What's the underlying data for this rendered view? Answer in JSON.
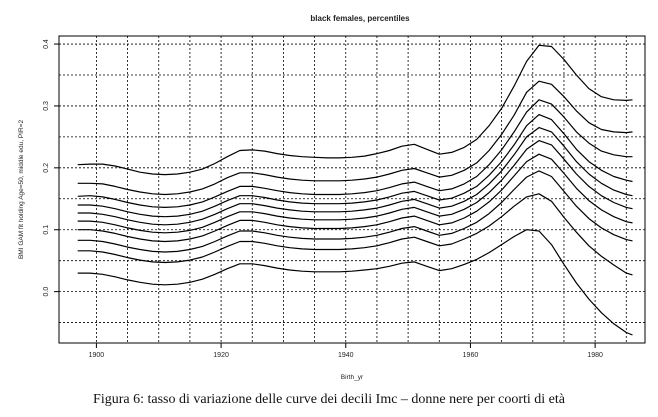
{
  "chart_data": {
    "type": "line",
    "title": "black females, percentiles",
    "xlabel": "Birth_yr",
    "ylabel": "BMI GAM fit holding Age=50, middle edu, PIR=2",
    "xlim": [
      1894,
      1988
    ],
    "ylim": [
      -0.083,
      0.413
    ],
    "xticks": [
      1900,
      1920,
      1940,
      1960,
      1980
    ],
    "yticks": [
      0.0,
      0.1,
      0.2,
      0.3,
      0.4
    ],
    "xtick_labels": [
      "1900",
      "1920",
      "1940",
      "1960",
      "1980"
    ],
    "ytick_labels": [
      "0.0",
      "0.1",
      "0.2",
      "0.3",
      "0.4"
    ],
    "grid": true,
    "legend": "none",
    "x": [
      1897,
      1899,
      1901,
      1903,
      1905,
      1907,
      1909,
      1911,
      1913,
      1915,
      1917,
      1919,
      1921,
      1923,
      1925,
      1927,
      1929,
      1931,
      1933,
      1935,
      1937,
      1939,
      1941,
      1943,
      1945,
      1947,
      1949,
      1951,
      1953,
      1955,
      1957,
      1959,
      1961,
      1963,
      1965,
      1967,
      1969,
      1971,
      1973,
      1975,
      1977,
      1979,
      1981,
      1983,
      1985,
      1986
    ],
    "series": [
      {
        "values": [
          0.205,
          0.206,
          0.206,
          0.203,
          0.198,
          0.193,
          0.19,
          0.189,
          0.19,
          0.193,
          0.198,
          0.207,
          0.218,
          0.228,
          0.229,
          0.227,
          0.223,
          0.22,
          0.218,
          0.217,
          0.216,
          0.216,
          0.217,
          0.219,
          0.223,
          0.228,
          0.235,
          0.238,
          0.23,
          0.222,
          0.225,
          0.233,
          0.246,
          0.268,
          0.296,
          0.332,
          0.372,
          0.398,
          0.396,
          0.375,
          0.35,
          0.328,
          0.315,
          0.31,
          0.309,
          0.31
        ]
      },
      {
        "values": [
          0.175,
          0.175,
          0.174,
          0.17,
          0.165,
          0.161,
          0.158,
          0.157,
          0.158,
          0.161,
          0.166,
          0.174,
          0.184,
          0.192,
          0.192,
          0.189,
          0.185,
          0.182,
          0.18,
          0.179,
          0.179,
          0.179,
          0.18,
          0.182,
          0.185,
          0.19,
          0.196,
          0.199,
          0.192,
          0.185,
          0.188,
          0.196,
          0.208,
          0.228,
          0.254,
          0.285,
          0.322,
          0.34,
          0.335,
          0.315,
          0.292,
          0.273,
          0.262,
          0.258,
          0.257,
          0.258
        ]
      },
      {
        "values": [
          0.154,
          0.155,
          0.153,
          0.149,
          0.144,
          0.14,
          0.137,
          0.136,
          0.137,
          0.14,
          0.145,
          0.153,
          0.162,
          0.17,
          0.17,
          0.167,
          0.163,
          0.16,
          0.158,
          0.157,
          0.157,
          0.157,
          0.158,
          0.16,
          0.163,
          0.168,
          0.174,
          0.177,
          0.17,
          0.163,
          0.166,
          0.174,
          0.186,
          0.205,
          0.229,
          0.258,
          0.29,
          0.31,
          0.303,
          0.282,
          0.258,
          0.24,
          0.227,
          0.221,
          0.218,
          0.218
        ]
      },
      {
        "values": [
          0.14,
          0.14,
          0.138,
          0.134,
          0.129,
          0.125,
          0.122,
          0.121,
          0.122,
          0.125,
          0.13,
          0.138,
          0.147,
          0.155,
          0.155,
          0.152,
          0.148,
          0.145,
          0.143,
          0.142,
          0.142,
          0.142,
          0.143,
          0.145,
          0.148,
          0.153,
          0.159,
          0.162,
          0.155,
          0.148,
          0.151,
          0.159,
          0.17,
          0.188,
          0.21,
          0.237,
          0.268,
          0.286,
          0.278,
          0.255,
          0.23,
          0.21,
          0.196,
          0.186,
          0.18,
          0.178
        ]
      },
      {
        "values": [
          0.127,
          0.127,
          0.125,
          0.121,
          0.116,
          0.112,
          0.109,
          0.108,
          0.109,
          0.112,
          0.117,
          0.125,
          0.134,
          0.142,
          0.142,
          0.139,
          0.135,
          0.132,
          0.13,
          0.129,
          0.129,
          0.129,
          0.13,
          0.132,
          0.135,
          0.14,
          0.146,
          0.149,
          0.142,
          0.135,
          0.138,
          0.146,
          0.157,
          0.174,
          0.195,
          0.221,
          0.25,
          0.265,
          0.258,
          0.235,
          0.21,
          0.19,
          0.175,
          0.164,
          0.157,
          0.155
        ]
      },
      {
        "values": [
          0.114,
          0.114,
          0.112,
          0.108,
          0.103,
          0.099,
          0.096,
          0.095,
          0.096,
          0.099,
          0.104,
          0.112,
          0.121,
          0.129,
          0.129,
          0.126,
          0.122,
          0.119,
          0.117,
          0.116,
          0.116,
          0.116,
          0.117,
          0.119,
          0.122,
          0.127,
          0.133,
          0.136,
          0.129,
          0.122,
          0.125,
          0.133,
          0.144,
          0.16,
          0.18,
          0.204,
          0.23,
          0.244,
          0.237,
          0.214,
          0.19,
          0.17,
          0.155,
          0.144,
          0.136,
          0.134
        ]
      },
      {
        "values": [
          0.1,
          0.1,
          0.098,
          0.094,
          0.089,
          0.085,
          0.082,
          0.081,
          0.082,
          0.085,
          0.09,
          0.098,
          0.107,
          0.115,
          0.115,
          0.112,
          0.108,
          0.105,
          0.103,
          0.102,
          0.102,
          0.102,
          0.103,
          0.105,
          0.108,
          0.113,
          0.119,
          0.122,
          0.115,
          0.108,
          0.111,
          0.119,
          0.13,
          0.145,
          0.164,
          0.187,
          0.21,
          0.222,
          0.214,
          0.191,
          0.167,
          0.147,
          0.132,
          0.121,
          0.113,
          0.111
        ]
      },
      {
        "values": [
          0.083,
          0.083,
          0.081,
          0.077,
          0.072,
          0.068,
          0.065,
          0.064,
          0.065,
          0.068,
          0.073,
          0.081,
          0.09,
          0.098,
          0.098,
          0.095,
          0.091,
          0.088,
          0.086,
          0.085,
          0.085,
          0.085,
          0.086,
          0.088,
          0.091,
          0.096,
          0.102,
          0.105,
          0.098,
          0.091,
          0.094,
          0.102,
          0.112,
          0.126,
          0.144,
          0.165,
          0.185,
          0.195,
          0.186,
          0.162,
          0.138,
          0.118,
          0.103,
          0.092,
          0.084,
          0.082
        ]
      },
      {
        "values": [
          0.066,
          0.066,
          0.064,
          0.06,
          0.055,
          0.051,
          0.048,
          0.047,
          0.048,
          0.051,
          0.056,
          0.064,
          0.073,
          0.081,
          0.081,
          0.078,
          0.074,
          0.071,
          0.069,
          0.068,
          0.068,
          0.068,
          0.069,
          0.071,
          0.074,
          0.079,
          0.085,
          0.088,
          0.081,
          0.074,
          0.077,
          0.085,
          0.094,
          0.106,
          0.121,
          0.138,
          0.153,
          0.158,
          0.146,
          0.12,
          0.096,
          0.074,
          0.057,
          0.043,
          0.03,
          0.027
        ]
      },
      {
        "values": [
          0.03,
          0.03,
          0.028,
          0.024,
          0.019,
          0.015,
          0.012,
          0.011,
          0.012,
          0.015,
          0.02,
          0.028,
          0.037,
          0.045,
          0.045,
          0.042,
          0.038,
          0.035,
          0.033,
          0.032,
          0.032,
          0.032,
          0.033,
          0.035,
          0.037,
          0.041,
          0.046,
          0.048,
          0.041,
          0.034,
          0.037,
          0.044,
          0.052,
          0.063,
          0.076,
          0.089,
          0.1,
          0.098,
          0.076,
          0.044,
          0.014,
          -0.012,
          -0.034,
          -0.052,
          -0.066,
          -0.07
        ]
      }
    ]
  },
  "caption": "Figura 6: tasso di variazione delle curve dei decili Imc – donne nere per coorti di età"
}
